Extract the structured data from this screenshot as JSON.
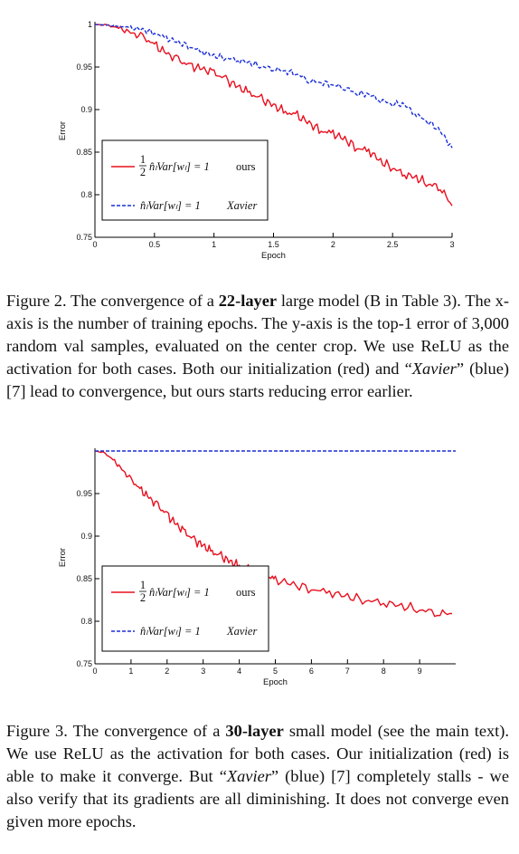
{
  "figures": [
    {
      "id": "fig2",
      "caption": {
        "prefix": "Figure 2. The convergence of a ",
        "bold": "22-layer",
        "middle": " large model (B in Table 3). The x-axis is the number of training epochs. The y-axis is the top-1 error of 3,000 random val samples, evaluated on the center crop. We use ReLU as the activation for both cases. Both our initialization (red) and “",
        "italic": "Xavier",
        "suffix": "” (blue) [7] lead to convergence, but ours starts reducing error earlier."
      }
    },
    {
      "id": "fig3",
      "caption": {
        "prefix": "Figure 3. The convergence of a ",
        "bold": "30-layer",
        "middle": " small model (see the main text). We use ReLU as the activation for both cases. Our initialization (red) is able to make it converge. But “",
        "italic": "Xavier",
        "suffix": "” (blue) [7] completely stalls - we also verify that its gradients are all diminishing. It does not converge even given more epochs."
      }
    }
  ],
  "chart_data": [
    {
      "type": "line",
      "xlabel": "Epoch",
      "ylabel": "Error",
      "xlim": [
        0,
        3
      ],
      "ylim": [
        0.75,
        1.0
      ],
      "x_ticks": [
        "0",
        "0.5",
        "1",
        "1.5",
        "2",
        "2.5",
        "3"
      ],
      "y_ticks": [
        "0.75",
        "0.8",
        "0.85",
        "0.9",
        "0.95",
        "1"
      ],
      "legend": {
        "placement": "lower-left",
        "entries": [
          {
            "series": 0,
            "frac": [
              "1",
              "2"
            ],
            "expr": "n̂ₗVar[wₗ] = 1",
            "tag": "ours",
            "tag_italic": false
          },
          {
            "series": 1,
            "frac": null,
            "expr": "n̂ₗVar[wₗ] = 1",
            "tag": "Xavier",
            "tag_italic": true
          }
        ]
      },
      "series": [
        {
          "name": "ours",
          "color": "#e8101f",
          "dash": "solid",
          "x": [
            0,
            0.1,
            0.2,
            0.3,
            0.4,
            0.5,
            0.6,
            0.7,
            0.8,
            0.9,
            1.0,
            1.1,
            1.2,
            1.3,
            1.4,
            1.5,
            1.6,
            1.7,
            1.8,
            1.9,
            2.0,
            2.1,
            2.2,
            2.3,
            2.4,
            2.5,
            2.6,
            2.7,
            2.8,
            2.9,
            3.0
          ],
          "y": [
            1.0,
            0.999,
            0.996,
            0.99,
            0.985,
            0.976,
            0.966,
            0.958,
            0.951,
            0.948,
            0.943,
            0.935,
            0.927,
            0.919,
            0.912,
            0.905,
            0.897,
            0.893,
            0.884,
            0.875,
            0.872,
            0.865,
            0.855,
            0.852,
            0.839,
            0.832,
            0.824,
            0.82,
            0.813,
            0.809,
            0.787
          ]
        },
        {
          "name": "Xavier",
          "color": "#1b2fd6",
          "dash": "dashed",
          "x": [
            0,
            0.1,
            0.2,
            0.3,
            0.4,
            0.5,
            0.6,
            0.7,
            0.8,
            0.9,
            1.0,
            1.1,
            1.2,
            1.3,
            1.4,
            1.5,
            1.6,
            1.7,
            1.8,
            1.9,
            2.0,
            2.1,
            2.2,
            2.3,
            2.4,
            2.5,
            2.6,
            2.7,
            2.8,
            2.9,
            3.0
          ],
          "y": [
            1.0,
            0.999,
            0.998,
            0.996,
            0.994,
            0.99,
            0.984,
            0.979,
            0.974,
            0.968,
            0.963,
            0.961,
            0.958,
            0.955,
            0.951,
            0.948,
            0.945,
            0.942,
            0.934,
            0.932,
            0.929,
            0.926,
            0.919,
            0.918,
            0.911,
            0.907,
            0.906,
            0.894,
            0.886,
            0.875,
            0.855
          ]
        }
      ]
    },
    {
      "type": "line",
      "xlabel": "Epoch",
      "ylabel": "Error",
      "xlim": [
        0,
        10
      ],
      "ylim": [
        0.75,
        1.0
      ],
      "x_ticks": [
        "0",
        "1",
        "2",
        "3",
        "4",
        "5",
        "6",
        "7",
        "8",
        "9"
      ],
      "y_ticks": [
        "0.75",
        "0.8",
        "0.85",
        "0.9",
        "0.95"
      ],
      "legend": {
        "placement": "lower-left",
        "entries": [
          {
            "series": 0,
            "frac": [
              "1",
              "2"
            ],
            "expr": "n̂ₗVar[wₗ] = 1",
            "tag": "ours",
            "tag_italic": false
          },
          {
            "series": 1,
            "frac": null,
            "expr": "n̂ₗVar[wₗ] = 1",
            "tag": "Xavier",
            "tag_italic": true
          }
        ]
      },
      "series": [
        {
          "name": "ours",
          "color": "#e8101f",
          "dash": "solid",
          "x": [
            0,
            0.25,
            0.5,
            0.75,
            1.0,
            1.25,
            1.5,
            1.75,
            2.0,
            2.25,
            2.5,
            2.75,
            3.0,
            3.25,
            3.5,
            3.75,
            4.0,
            4.25,
            4.5,
            4.75,
            5.0,
            5.5,
            6.0,
            6.5,
            7.0,
            7.5,
            8.0,
            8.5,
            9.0,
            9.5,
            9.9
          ],
          "y": [
            1.0,
            0.998,
            0.99,
            0.978,
            0.966,
            0.955,
            0.945,
            0.935,
            0.925,
            0.914,
            0.904,
            0.895,
            0.889,
            0.881,
            0.876,
            0.87,
            0.865,
            0.861,
            0.857,
            0.853,
            0.849,
            0.843,
            0.838,
            0.834,
            0.829,
            0.825,
            0.822,
            0.818,
            0.814,
            0.81,
            0.809
          ]
        },
        {
          "name": "Xavier",
          "color": "#1b2fd6",
          "dash": "dashed",
          "x": [
            0,
            10
          ],
          "y": [
            1.0,
            1.0
          ]
        }
      ]
    }
  ]
}
